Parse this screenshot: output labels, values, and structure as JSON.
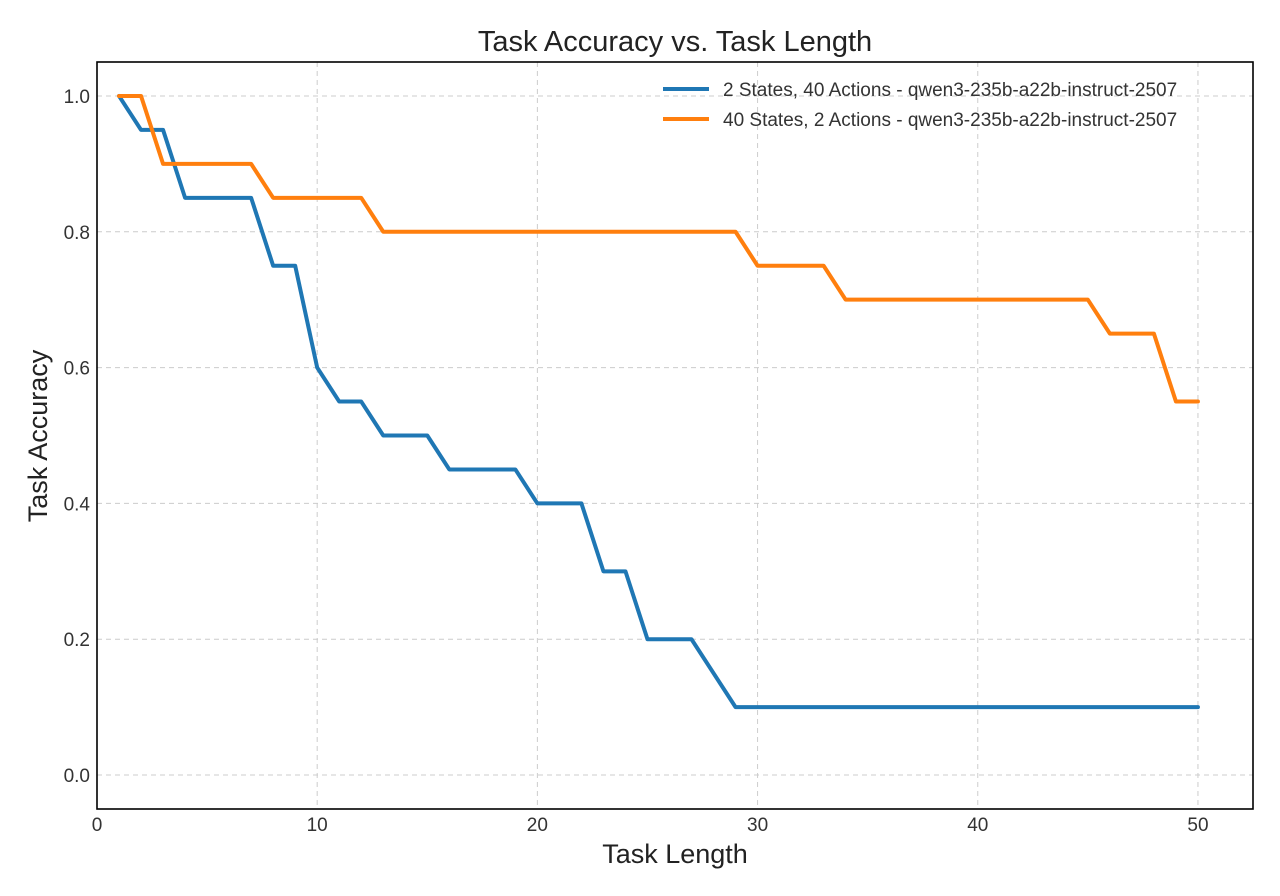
{
  "chart_data": {
    "type": "line",
    "title": "Task Accuracy vs. Task Length",
    "xlabel": "Task Length",
    "ylabel": "Task Accuracy",
    "xlim": [
      0,
      52.5
    ],
    "ylim": [
      -0.05,
      1.05
    ],
    "xticks": [
      0,
      10,
      20,
      30,
      40,
      50
    ],
    "xtick_labels": [
      "0",
      "10",
      "20",
      "30",
      "40",
      "50"
    ],
    "yticks": [
      0.0,
      0.2,
      0.4,
      0.6,
      0.8,
      1.0
    ],
    "ytick_labels": [
      "0.0",
      "0.2",
      "0.4",
      "0.6",
      "0.8",
      "1.0"
    ],
    "grid": true,
    "legend_position": "top-right",
    "x": [
      1,
      2,
      3,
      4,
      5,
      6,
      7,
      8,
      9,
      10,
      11,
      12,
      13,
      14,
      15,
      16,
      17,
      18,
      19,
      20,
      21,
      22,
      23,
      24,
      25,
      26,
      27,
      28,
      29,
      30,
      31,
      32,
      33,
      34,
      35,
      36,
      37,
      38,
      39,
      40,
      41,
      42,
      43,
      44,
      45,
      46,
      47,
      48,
      49,
      50
    ],
    "series": [
      {
        "name": "2 States, 40 Actions - qwen3-235b-a22b-instruct-2507",
        "color": "#1f77b4",
        "values": [
          1.0,
          0.95,
          0.95,
          0.85,
          0.85,
          0.85,
          0.85,
          0.75,
          0.75,
          0.6,
          0.55,
          0.55,
          0.5,
          0.5,
          0.5,
          0.45,
          0.45,
          0.45,
          0.45,
          0.4,
          0.4,
          0.4,
          0.3,
          0.3,
          0.2,
          0.2,
          0.2,
          0.15,
          0.1,
          0.1,
          0.1,
          0.1,
          0.1,
          0.1,
          0.1,
          0.1,
          0.1,
          0.1,
          0.1,
          0.1,
          0.1,
          0.1,
          0.1,
          0.1,
          0.1,
          0.1,
          0.1,
          0.1,
          0.1,
          0.1
        ]
      },
      {
        "name": "40 States, 2 Actions - qwen3-235b-a22b-instruct-2507",
        "color": "#ff7f0e",
        "values": [
          1.0,
          1.0,
          0.9,
          0.9,
          0.9,
          0.9,
          0.9,
          0.85,
          0.85,
          0.85,
          0.85,
          0.85,
          0.8,
          0.8,
          0.8,
          0.8,
          0.8,
          0.8,
          0.8,
          0.8,
          0.8,
          0.8,
          0.8,
          0.8,
          0.8,
          0.8,
          0.8,
          0.8,
          0.8,
          0.75,
          0.75,
          0.75,
          0.75,
          0.7,
          0.7,
          0.7,
          0.7,
          0.7,
          0.7,
          0.7,
          0.7,
          0.7,
          0.7,
          0.7,
          0.7,
          0.65,
          0.65,
          0.65,
          0.55,
          0.55
        ]
      }
    ]
  }
}
